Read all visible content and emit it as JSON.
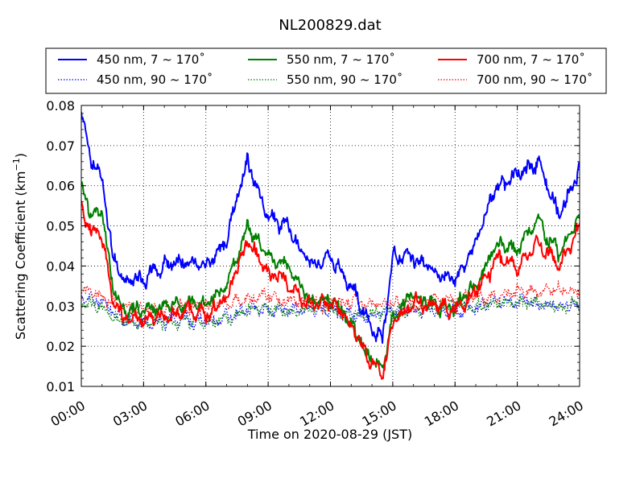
{
  "chart_data": {
    "type": "line",
    "title": "NL200829.dat",
    "xlabel": "Time on 2020-08-29 (JST)",
    "ylabel": "Scattering Coefficient (km",
    "ylabel_sup": "−1",
    "ylabel_tail": ")",
    "xlim": [
      "00:00",
      "24:00"
    ],
    "ylim": [
      0.01,
      0.08
    ],
    "grid": true,
    "legend_position": "top",
    "x_ticks": [
      "00:00",
      "03:00",
      "06:00",
      "09:00",
      "12:00",
      "15:00",
      "18:00",
      "21:00",
      "24:00"
    ],
    "y_ticks": [
      "0.01",
      "0.02",
      "0.03",
      "0.04",
      "0.05",
      "0.06",
      "0.07",
      "0.08"
    ],
    "series": [
      {
        "name": "450 nm, 7 ~ 170˚",
        "color": "#0000ff",
        "style": "solid",
        "x_hours": [
          0,
          0.5,
          1,
          1.5,
          2,
          3,
          4,
          5,
          6,
          7,
          8,
          9,
          10,
          11,
          12,
          13,
          14,
          14.5,
          15,
          16,
          17,
          18,
          19,
          20,
          21,
          22,
          23,
          24
        ],
        "values": [
          0.078,
          0.066,
          0.062,
          0.043,
          0.037,
          0.037,
          0.04,
          0.041,
          0.04,
          0.046,
          0.066,
          0.052,
          0.049,
          0.04,
          0.042,
          0.035,
          0.025,
          0.022,
          0.042,
          0.042,
          0.038,
          0.036,
          0.046,
          0.06,
          0.062,
          0.067,
          0.052,
          0.065
        ]
      },
      {
        "name": "550 nm, 7 ~ 170˚",
        "color": "#008000",
        "style": "solid",
        "x_hours": [
          0,
          0.5,
          1,
          1.5,
          2,
          3,
          4,
          5,
          6,
          7,
          8,
          9,
          10,
          11,
          12,
          13,
          14,
          14.5,
          15,
          16,
          17,
          18,
          19,
          20,
          21,
          22,
          23,
          24
        ],
        "values": [
          0.061,
          0.052,
          0.054,
          0.035,
          0.029,
          0.029,
          0.03,
          0.031,
          0.03,
          0.035,
          0.05,
          0.042,
          0.04,
          0.031,
          0.032,
          0.026,
          0.016,
          0.014,
          0.027,
          0.033,
          0.03,
          0.03,
          0.035,
          0.046,
          0.044,
          0.051,
          0.043,
          0.052
        ]
      },
      {
        "name": "700 nm, 7 ~ 170˚",
        "color": "#ff0000",
        "style": "solid",
        "x_hours": [
          0,
          0.5,
          1,
          1.5,
          2,
          3,
          4,
          5,
          6,
          7,
          8,
          9,
          10,
          11,
          12,
          13,
          14,
          14.5,
          15,
          16,
          17,
          18,
          19,
          20,
          21,
          22,
          23,
          24
        ],
        "values": [
          0.054,
          0.048,
          0.048,
          0.032,
          0.027,
          0.027,
          0.028,
          0.029,
          0.028,
          0.032,
          0.046,
          0.038,
          0.036,
          0.03,
          0.031,
          0.025,
          0.016,
          0.014,
          0.025,
          0.031,
          0.03,
          0.029,
          0.033,
          0.042,
          0.04,
          0.046,
          0.04,
          0.05
        ]
      },
      {
        "name": "450 nm, 90 ~ 170˚",
        "color": "#0000ff",
        "style": "dotted",
        "x_hours": [
          0,
          1,
          2,
          3,
          4,
          5,
          6,
          7,
          8,
          9,
          10,
          11,
          12,
          13,
          14,
          15,
          16,
          17,
          18,
          19,
          20,
          21,
          22,
          23,
          24
        ],
        "values": [
          0.032,
          0.031,
          0.027,
          0.026,
          0.026,
          0.026,
          0.026,
          0.027,
          0.029,
          0.029,
          0.029,
          0.029,
          0.029,
          0.028,
          0.027,
          0.029,
          0.029,
          0.029,
          0.029,
          0.03,
          0.031,
          0.031,
          0.031,
          0.03,
          0.03
        ]
      },
      {
        "name": "550 nm, 90 ~ 170˚",
        "color": "#008000",
        "style": "dotted",
        "x_hours": [
          0,
          1,
          2,
          3,
          4,
          5,
          6,
          7,
          8,
          9,
          10,
          11,
          12,
          13,
          14,
          15,
          16,
          17,
          18,
          19,
          20,
          21,
          22,
          23,
          24
        ],
        "values": [
          0.031,
          0.03,
          0.026,
          0.026,
          0.026,
          0.026,
          0.026,
          0.027,
          0.029,
          0.029,
          0.029,
          0.029,
          0.029,
          0.028,
          0.028,
          0.029,
          0.029,
          0.03,
          0.03,
          0.03,
          0.031,
          0.031,
          0.031,
          0.03,
          0.03
        ]
      },
      {
        "name": "700 nm, 90 ~ 170˚",
        "color": "#ff0000",
        "style": "dotted",
        "x_hours": [
          0,
          1,
          2,
          3,
          4,
          5,
          6,
          7,
          8,
          9,
          10,
          11,
          12,
          13,
          14,
          15,
          16,
          17,
          18,
          19,
          20,
          21,
          22,
          23,
          24
        ],
        "values": [
          0.034,
          0.033,
          0.029,
          0.029,
          0.029,
          0.03,
          0.03,
          0.031,
          0.032,
          0.032,
          0.031,
          0.031,
          0.031,
          0.031,
          0.03,
          0.031,
          0.031,
          0.032,
          0.032,
          0.032,
          0.033,
          0.034,
          0.034,
          0.034,
          0.034
        ]
      }
    ]
  }
}
